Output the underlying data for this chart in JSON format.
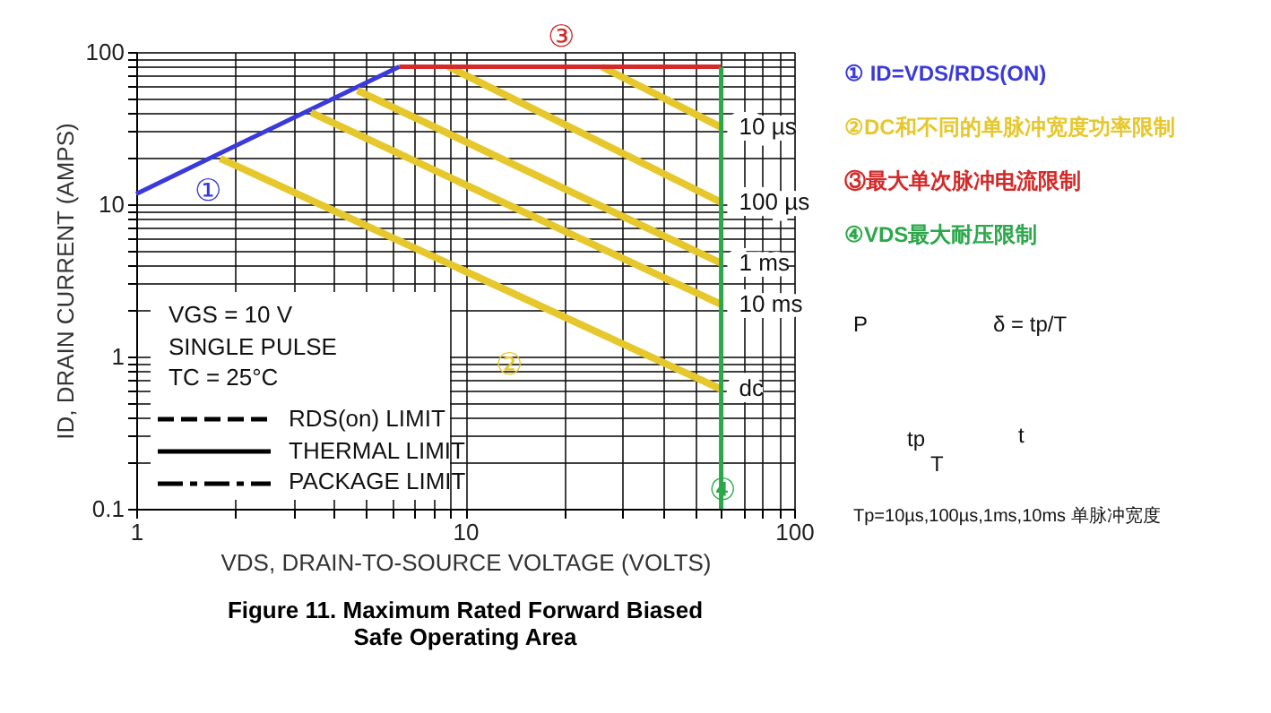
{
  "chart_data": {
    "type": "line",
    "title": "Figure 11. Maximum Rated Forward Biased\nSafe Operating Area",
    "xlabel": "VDS, DRAIN-TO-SOURCE VOLTAGE (VOLTS)",
    "ylabel": "ID, DRAIN CURRENT (AMPS)",
    "log": "xy",
    "grid": true,
    "line_style": "solid",
    "marker": "none",
    "xlim": [
      1,
      100
    ],
    "ylim": [
      0.1,
      100
    ],
    "xticks": [
      1,
      {
        "value": 2,
        "label": null
      },
      {
        "value": 3,
        "label": null
      },
      {
        "value": 4,
        "label": null
      },
      {
        "value": 5,
        "label": null
      },
      {
        "value": 6,
        "label": null
      },
      {
        "value": 7,
        "label": null
      },
      {
        "value": 8,
        "label": null
      },
      {
        "value": 9,
        "label": null
      },
      10,
      {
        "value": 20,
        "label": null
      },
      {
        "value": 30,
        "label": null
      },
      {
        "value": 40,
        "label": null
      },
      {
        "value": 50,
        "label": null
      },
      {
        "value": 60,
        "label": null
      },
      {
        "value": 70,
        "label": null
      },
      {
        "value": 80,
        "label": null
      },
      {
        "value": 90,
        "label": null
      },
      100
    ],
    "yticks": [
      0.1,
      {
        "value": 0.2,
        "label": null
      },
      {
        "value": 0.3,
        "label": null
      },
      {
        "value": 0.4,
        "label": null
      },
      {
        "value": 0.5,
        "label": null
      },
      {
        "value": 0.6,
        "label": null
      },
      {
        "value": 0.7,
        "label": null
      },
      {
        "value": 0.8,
        "label": null
      },
      {
        "value": 0.9,
        "label": null
      },
      1,
      {
        "value": 2,
        "label": null
      },
      {
        "value": 3,
        "label": null
      },
      {
        "value": 4,
        "label": null
      },
      {
        "value": 5,
        "label": null
      },
      {
        "value": 6,
        "label": null
      },
      {
        "value": 7,
        "label": null
      },
      {
        "value": 8,
        "label": null
      },
      {
        "value": 9,
        "label": null
      },
      10,
      {
        "value": 20,
        "label": null
      },
      {
        "value": 30,
        "label": null
      },
      {
        "value": 40,
        "label": null
      },
      {
        "value": 50,
        "label": null
      },
      {
        "value": 60,
        "label": null
      },
      {
        "value": 70,
        "label": null
      },
      {
        "value": 80,
        "label": null
      },
      {
        "value": 90,
        "label": null
      },
      100
    ],
    "series": [
      {
        "color": "#3a3adc",
        "x": [
          1,
          6.3
        ],
        "values": [
          11.7,
          80
        ]
      },
      {
        "name": "10 µs",
        "color": "#e6c72c",
        "x": [
          26,
          60
        ],
        "values": [
          80,
          32
        ]
      },
      {
        "name": "100 µs",
        "color": "#e6c72c",
        "x": [
          8.9,
          60
        ],
        "values": [
          80,
          10.3
        ]
      },
      {
        "name": "1 ms",
        "color": "#e6c72c",
        "x": [
          4.7,
          60
        ],
        "values": [
          56,
          4.1
        ]
      },
      {
        "name": "10 ms",
        "color": "#e6c72c",
        "x": [
          3.4,
          60
        ],
        "values": [
          40,
          2.2
        ]
      },
      {
        "name": "dc",
        "color": "#e6c72c",
        "x": [
          1.8,
          60
        ],
        "values": [
          20,
          0.61
        ]
      },
      {
        "color": "#d42a2a",
        "x": [
          6.3,
          60
        ],
        "values": [
          80,
          80
        ]
      },
      {
        "color": "#2ca84a",
        "x": [
          60,
          60
        ],
        "values": [
          0.1,
          80
        ]
      }
    ],
    "annotations": [
      "①",
      "②",
      "③",
      "④",
      "① ID=VDS/RDS(ON)",
      "②DC和不同的单脉冲宽度功率限制",
      "③最大单次脉冲电流限制",
      "④VDS最大耐压限制",
      "VGS = 10 V",
      "SINGLE PULSE",
      "TC = 25°C",
      "RDS(on) LIMIT",
      "THERMAL LIMIT",
      "PACKAGE LIMIT",
      "P",
      "δ = tp/T",
      "t",
      "tp",
      "T",
      "Tp=10µs,100µs,1ms,10ms 单脉冲宽度"
    ]
  }
}
